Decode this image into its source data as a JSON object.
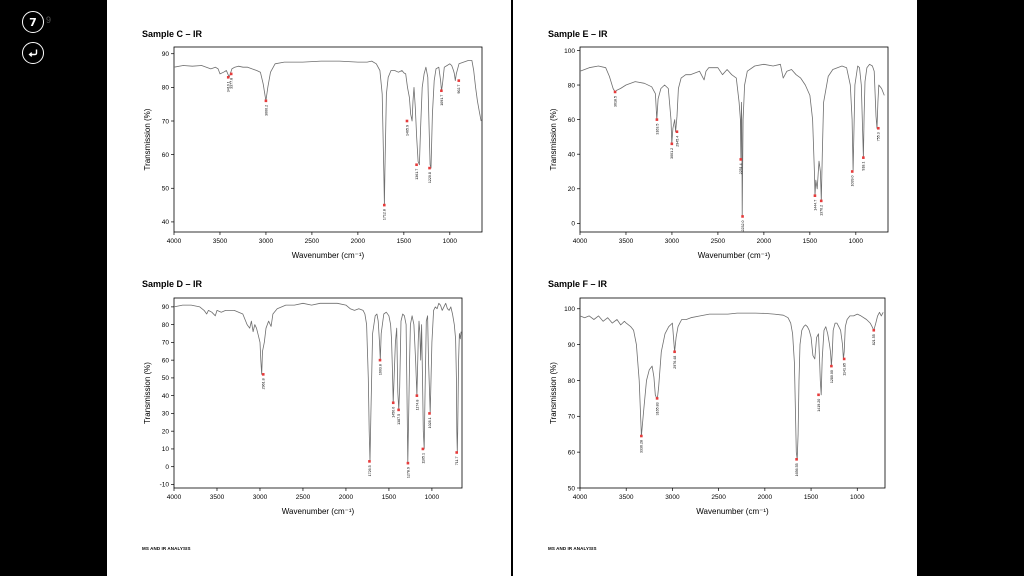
{
  "viewer": {
    "page_number": "7",
    "page_total": "9",
    "back_icon": "return-arrow-icon"
  },
  "pages": [
    {
      "footer": "MS AND IR ANALYSIS"
    },
    {
      "footer": "MS AND IR ANALYSIS"
    }
  ],
  "chart_data": [
    {
      "type": "line",
      "title": "Sample C – IR",
      "xlabel": "Wavenumber (cm⁻¹)",
      "ylabel": "Transmission (%)",
      "xlim": [
        4000,
        650
      ],
      "xaxis_reversed": true,
      "ylim": [
        37,
        92
      ],
      "xticks": [
        4000,
        3500,
        3000,
        2500,
        2000,
        1500,
        1000
      ],
      "yticks": [
        40,
        50,
        60,
        70,
        80,
        90
      ],
      "grid": false,
      "line_color": "#6e6e6e",
      "marker_color": "#e63b3b",
      "x": [
        4000,
        3900,
        3800,
        3700,
        3600,
        3550,
        3520,
        3500,
        3460,
        3430,
        3400,
        3370,
        3340,
        3300,
        3250,
        3200,
        3150,
        3100,
        3060,
        3030,
        3000,
        2980,
        2950,
        2900,
        2800,
        2600,
        2400,
        2200,
        2000,
        1900,
        1850,
        1800,
        1760,
        1735,
        1718,
        1712,
        1706,
        1690,
        1670,
        1640,
        1600,
        1560,
        1520,
        1500,
        1480,
        1460,
        1440,
        1425,
        1410,
        1400,
        1390,
        1375,
        1360,
        1345,
        1331,
        1318,
        1300,
        1280,
        1260,
        1240,
        1225,
        1215,
        1205,
        1190,
        1170,
        1150,
        1120,
        1100,
        1091,
        1080,
        1060,
        1030,
        1000,
        980,
        960,
        950,
        940,
        930,
        900,
        850,
        800,
        760,
        740,
        720,
        700,
        680,
        660
      ],
      "y": [
        86,
        86.5,
        86.3,
        86.5,
        85.5,
        86,
        85.5,
        84,
        84.5,
        85,
        83,
        85.5,
        86,
        86.3,
        86,
        86,
        85.5,
        85,
        84.5,
        81,
        76,
        80,
        84.5,
        87,
        87.5,
        87.5,
        87.8,
        87.8,
        87.5,
        87.5,
        87.8,
        87,
        85,
        78,
        55,
        45,
        55,
        78,
        83,
        85,
        85,
        84.5,
        85,
        84.3,
        84,
        80,
        77,
        72,
        70,
        76,
        80,
        74,
        65,
        58,
        57,
        68,
        80,
        84,
        86,
        83,
        68,
        57,
        56,
        72,
        82,
        85.5,
        86,
        82,
        79,
        81,
        86,
        86.5,
        87,
        86.5,
        85,
        84,
        82,
        84,
        87,
        87.5,
        88,
        88,
        85,
        80,
        76,
        73,
        70
      ],
      "peaks": [
        {
          "x": 3377.8,
          "y": 84,
          "label": "3377.8"
        },
        {
          "x": 3410.1,
          "y": 83,
          "label": "3410.1"
        },
        {
          "x": 3000.2,
          "y": 76,
          "label": "3000.2"
        },
        {
          "x": 1712.8,
          "y": 45,
          "label": "1712.8"
        },
        {
          "x": 1465.9,
          "y": 70,
          "label": "1465.9"
        },
        {
          "x": 1361.7,
          "y": 57,
          "label": "1361.7"
        },
        {
          "x": 1220.8,
          "y": 56,
          "label": "1220.8"
        },
        {
          "x": 1091.7,
          "y": 79,
          "label": "1091.7"
        },
        {
          "x": 902.7,
          "y": 82,
          "label": "902.7"
        }
      ]
    },
    {
      "type": "line",
      "title": "Sample E – IR",
      "xlabel": "Wavenumber (cm⁻¹)",
      "ylabel": "Transmission (%)",
      "xlim": [
        4000,
        650
      ],
      "xaxis_reversed": true,
      "ylim": [
        -5,
        102
      ],
      "xticks": [
        4000,
        3500,
        3000,
        2500,
        2000,
        1500,
        1000
      ],
      "yticks": [
        0,
        20,
        40,
        60,
        80,
        100
      ],
      "grid": false,
      "line_color": "#6e6e6e",
      "marker_color": "#e63b3b",
      "x": [
        4000,
        3900,
        3800,
        3720,
        3680,
        3640,
        3618,
        3600,
        3560,
        3500,
        3400,
        3300,
        3220,
        3180,
        3165,
        3150,
        3120,
        3080,
        3040,
        3010,
        3001,
        2990,
        2970,
        2960,
        2945,
        2930,
        2900,
        2850,
        2800,
        2700,
        2650,
        2630,
        2600,
        2500,
        2450,
        2400,
        2350,
        2300,
        2270,
        2255,
        2250,
        2245,
        2240,
        2236,
        2232,
        2226,
        2210,
        2180,
        2100,
        2000,
        1900,
        1820,
        1790,
        1750,
        1700,
        1650,
        1600,
        1550,
        1500,
        1470,
        1450,
        1444,
        1435,
        1420,
        1400,
        1385,
        1376,
        1365,
        1350,
        1300,
        1250,
        1200,
        1150,
        1100,
        1060,
        1040,
        1030,
        1020,
        1010,
        980,
        960,
        940,
        930,
        918,
        910,
        900,
        880,
        850,
        820,
        800,
        790,
        780,
        770,
        760,
        750,
        720,
        690
      ],
      "y": [
        88,
        90,
        91,
        90,
        85,
        78,
        76,
        77,
        78,
        80,
        82,
        81,
        79,
        75,
        60,
        72,
        78,
        80,
        78,
        60,
        46,
        55,
        60,
        53,
        62,
        78,
        84,
        86,
        86,
        88,
        83,
        88,
        90,
        90,
        86,
        89,
        86,
        84,
        70,
        60,
        37,
        70,
        60,
        4,
        30,
        60,
        80,
        88,
        91,
        92,
        91,
        92,
        84,
        88,
        89,
        86,
        84,
        80,
        74,
        60,
        30,
        16,
        25,
        20,
        36,
        30,
        13,
        40,
        70,
        85,
        89,
        90,
        91,
        90,
        80,
        60,
        30,
        55,
        80,
        91,
        90,
        80,
        60,
        38,
        62,
        82,
        90,
        92,
        91,
        88,
        75,
        62,
        55,
        70,
        80,
        78,
        74
      ],
      "peaks": [
        {
          "x": 3618.5,
          "y": 76,
          "label": "3618.5"
        },
        {
          "x": 3163.5,
          "y": 60,
          "label": "3163.5"
        },
        {
          "x": 3001.2,
          "y": 46,
          "label": "3001.2"
        },
        {
          "x": 2945.4,
          "y": 53,
          "label": "2945.4"
        },
        {
          "x": 2251.4,
          "y": 37,
          "label": "2251.4"
        },
        {
          "x": 2232.0,
          "y": 4,
          "label": "2232.0"
        },
        {
          "x": 1444.7,
          "y": 16,
          "label": "1444.7"
        },
        {
          "x": 1376.2,
          "y": 13,
          "label": "1376.2"
        },
        {
          "x": 1039.0,
          "y": 30,
          "label": "1039.0"
        },
        {
          "x": 918.1,
          "y": 38,
          "label": "918.1"
        },
        {
          "x": 755.3,
          "y": 55,
          "label": "755.3"
        }
      ]
    },
    {
      "type": "line",
      "title": "Sample D – IR",
      "xlabel": "Wavenumber (cm⁻¹)",
      "ylabel": "Transmission (%)",
      "xlim": [
        4000,
        650
      ],
      "xaxis_reversed": true,
      "ylim": [
        -12,
        95
      ],
      "xticks": [
        4000,
        3500,
        3000,
        2500,
        2000,
        1500,
        1000
      ],
      "yticks": [
        -10,
        0,
        10,
        20,
        30,
        40,
        50,
        60,
        70,
        80,
        90
      ],
      "grid": false,
      "line_color": "#6e6e6e",
      "marker_color": "#e63b3b",
      "x": [
        4000,
        3900,
        3800,
        3700,
        3650,
        3620,
        3600,
        3560,
        3520,
        3500,
        3450,
        3400,
        3300,
        3200,
        3150,
        3120,
        3100,
        3080,
        3060,
        3040,
        3020,
        3000,
        2990,
        2980,
        2970,
        2950,
        2930,
        2900,
        2870,
        2850,
        2800,
        2700,
        2600,
        2500,
        2400,
        2300,
        2200,
        2100,
        2000,
        1950,
        1900,
        1850,
        1800,
        1780,
        1760,
        1740,
        1730,
        1720,
        1710,
        1690,
        1660,
        1640,
        1625,
        1610,
        1600,
        1590,
        1560,
        1530,
        1500,
        1480,
        1470,
        1460,
        1450,
        1440,
        1425,
        1410,
        1397,
        1385,
        1375,
        1360,
        1340,
        1320,
        1300,
        1290,
        1280,
        1270,
        1260,
        1250,
        1230,
        1210,
        1190,
        1175,
        1160,
        1150,
        1140,
        1130,
        1120,
        1110,
        1100,
        1090,
        1080,
        1065,
        1050,
        1040,
        1020,
        1000,
        980,
        960,
        940,
        920,
        900,
        880,
        860,
        840,
        820,
        800,
        780,
        760,
        740,
        725,
        715,
        710,
        705,
        700,
        690,
        680,
        670,
        660
      ],
      "y": [
        90,
        91,
        91,
        90,
        88,
        86,
        88,
        87,
        85,
        88,
        87,
        88,
        88,
        86,
        80,
        78,
        82,
        76,
        80,
        78,
        74,
        70,
        60,
        52,
        65,
        70,
        78,
        82,
        79,
        86,
        89,
        91,
        91,
        92,
        91,
        92,
        92,
        92,
        91,
        89,
        88,
        89,
        88,
        86,
        80,
        50,
        20,
        3,
        30,
        75,
        85,
        86,
        82,
        70,
        60,
        75,
        86,
        87,
        85,
        80,
        72,
        55,
        36,
        50,
        70,
        78,
        42,
        32,
        45,
        82,
        86,
        85,
        80,
        40,
        2,
        30,
        60,
        80,
        85,
        80,
        60,
        40,
        70,
        82,
        75,
        60,
        80,
        50,
        20,
        10,
        40,
        82,
        85,
        60,
        30,
        70,
        88,
        90,
        89,
        92,
        91,
        88,
        90,
        92,
        89,
        88,
        90,
        86,
        80,
        72,
        50,
        20,
        8,
        20,
        60,
        75,
        72,
        76
      ],
      "peaks": [
        {
          "x": 2961.8,
          "y": 52,
          "label": "2961.8"
        },
        {
          "x": 1726.5,
          "y": 3,
          "label": "1726.5"
        },
        {
          "x": 1603.8,
          "y": 60,
          "label": "1603.8"
        },
        {
          "x": 1450.0,
          "y": 36,
          "label": "1450.0"
        },
        {
          "x": 1387.5,
          "y": 32,
          "label": "1387.5"
        },
        {
          "x": 1278.9,
          "y": 2,
          "label": "1278.9"
        },
        {
          "x": 1174.8,
          "y": 40,
          "label": "1174.8"
        },
        {
          "x": 1105.1,
          "y": 10,
          "label": "1105.1"
        },
        {
          "x": 1028.1,
          "y": 30,
          "label": "1028.1"
        },
        {
          "x": 711.7,
          "y": 8,
          "label": "711.7"
        }
      ]
    },
    {
      "type": "line",
      "title": "Sample F – IR",
      "xlabel": "Wavenumber (cm⁻¹)",
      "ylabel": "Transmission (%)",
      "xlim": [
        4000,
        700
      ],
      "xaxis_reversed": true,
      "ylim": [
        50,
        103
      ],
      "xticks": [
        4000,
        3500,
        3000,
        2500,
        2000,
        1500,
        1000
      ],
      "yticks": [
        50,
        60,
        70,
        80,
        90,
        100
      ],
      "grid": false,
      "line_color": "#6e6e6e",
      "marker_color": "#e63b3b",
      "x": [
        4000,
        3950,
        3900,
        3850,
        3800,
        3750,
        3700,
        3650,
        3600,
        3560,
        3520,
        3500,
        3450,
        3420,
        3390,
        3360,
        3336,
        3310,
        3280,
        3250,
        3220,
        3200,
        3185,
        3170,
        3160,
        3150,
        3120,
        3080,
        3040,
        3000,
        2976,
        2960,
        2940,
        2920,
        2900,
        2850,
        2800,
        2700,
        2600,
        2500,
        2400,
        2300,
        2200,
        2100,
        2000,
        1900,
        1800,
        1750,
        1720,
        1700,
        1680,
        1660,
        1650,
        1640,
        1630,
        1620,
        1600,
        1580,
        1560,
        1540,
        1520,
        1500,
        1480,
        1460,
        1440,
        1420,
        1410,
        1400,
        1390,
        1380,
        1360,
        1340,
        1320,
        1300,
        1290,
        1280,
        1270,
        1260,
        1240,
        1220,
        1200,
        1180,
        1160,
        1150,
        1141,
        1130,
        1110,
        1080,
        1040,
        1000,
        960,
        900,
        860,
        840,
        821,
        800,
        780,
        760,
        740,
        720
      ],
      "y": [
        98,
        97.5,
        98,
        97,
        98,
        96.5,
        97.5,
        96,
        97,
        95.5,
        96.5,
        96,
        95,
        94,
        90,
        80,
        64.5,
        72,
        80,
        83,
        84,
        81,
        76,
        75,
        75.5,
        78,
        88,
        93,
        95,
        96,
        88,
        92,
        95,
        96,
        97,
        97,
        97.5,
        98,
        98.5,
        98.5,
        98.5,
        98.8,
        98.8,
        98.8,
        98.7,
        98.5,
        98.2,
        97.5,
        96,
        93,
        85,
        60,
        58,
        65,
        80,
        90,
        94,
        95,
        95.5,
        95,
        94,
        92,
        87,
        86,
        92,
        93,
        87,
        80,
        76,
        86,
        94,
        95,
        93,
        90,
        88,
        84,
        88,
        94,
        96,
        96,
        95,
        94,
        90,
        86,
        88,
        95,
        97,
        98,
        98,
        98.5,
        98,
        97,
        96,
        95,
        94,
        96,
        98,
        99,
        98,
        99
      ],
      "peaks": [
        {
          "x": 3336.28,
          "y": 64.5,
          "label": "3336.28"
        },
        {
          "x": 3165.83,
          "y": 75,
          "label": "3165.83"
        },
        {
          "x": 2976.48,
          "y": 88,
          "label": "2976.48"
        },
        {
          "x": 1656.55,
          "y": 58,
          "label": "1656.55"
        },
        {
          "x": 1419.2,
          "y": 76,
          "label": "1419.20"
        },
        {
          "x": 1280.0,
          "y": 84,
          "label": "1280.00"
        },
        {
          "x": 1141.85,
          "y": 86,
          "label": "1141.85"
        },
        {
          "x": 821.55,
          "y": 94,
          "label": "821.55"
        }
      ]
    }
  ]
}
